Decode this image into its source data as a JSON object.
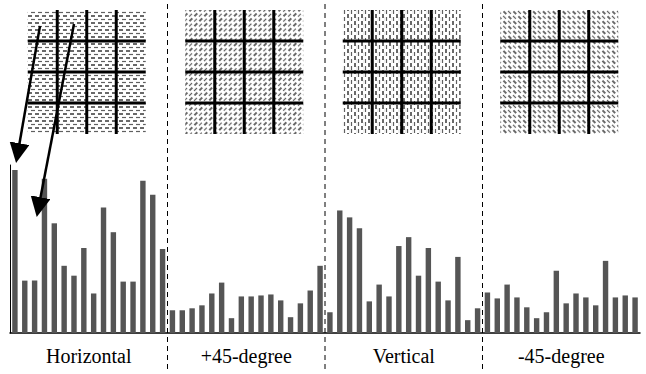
{
  "chart_data": {
    "type": "bar",
    "categories": [
      null,
      null,
      null,
      null,
      null,
      null,
      null,
      null,
      null,
      null,
      null,
      null,
      null,
      null,
      null,
      null,
      null,
      null,
      null,
      null,
      null,
      null,
      null,
      null,
      null,
      null,
      null,
      null,
      null,
      null,
      null,
      null,
      null,
      null,
      null,
      null,
      null,
      null,
      null,
      null,
      null,
      null,
      null,
      null,
      null,
      null,
      null,
      null,
      null,
      null,
      null,
      null,
      null,
      null,
      null,
      null,
      null,
      null,
      null,
      null,
      null,
      null,
      null,
      null
    ],
    "values": [
      165,
      53,
      53,
      156,
      111,
      68,
      58,
      86,
      40,
      127,
      102,
      52,
      52,
      154,
      140,
      85,
      23,
      23,
      25,
      28,
      40,
      51,
      15,
      37,
      37,
      38,
      39,
      33,
      16,
      30,
      43,
      68,
      21,
      124,
      117,
      106,
      32,
      49,
      37,
      88,
      97,
      58,
      86,
      52,
      33,
      77,
      13,
      25,
      41,
      35,
      49,
      36,
      26,
      15,
      21,
      63,
      30,
      40,
      36,
      28,
      73,
      36,
      38,
      36
    ],
    "group_labels": [
      "Horizontal",
      "+45-degree",
      "Vertical",
      "-45-degree"
    ],
    "color": "#555555",
    "ylim": [
      0,
      170
    ],
    "tick_labels": false
  }
}
